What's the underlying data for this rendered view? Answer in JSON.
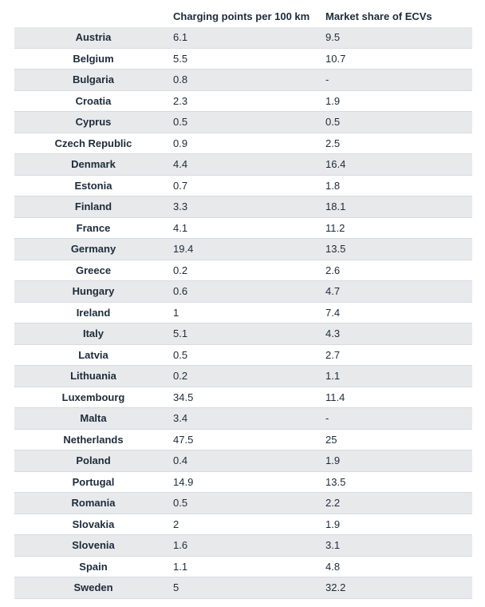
{
  "chart_data": {
    "type": "table",
    "columns": [
      "",
      "Charging points per 100 km",
      "Market share of ECVs"
    ],
    "rows": [
      {
        "country": "Austria",
        "charging_points_per_100km": "6.1",
        "market_share_ecvs": "9.5"
      },
      {
        "country": "Belgium",
        "charging_points_per_100km": "5.5",
        "market_share_ecvs": "10.7"
      },
      {
        "country": "Bulgaria",
        "charging_points_per_100km": "0.8",
        "market_share_ecvs": "-"
      },
      {
        "country": "Croatia",
        "charging_points_per_100km": "2.3",
        "market_share_ecvs": "1.9"
      },
      {
        "country": "Cyprus",
        "charging_points_per_100km": "0.5",
        "market_share_ecvs": "0.5"
      },
      {
        "country": "Czech Republic",
        "charging_points_per_100km": "0.9",
        "market_share_ecvs": "2.5"
      },
      {
        "country": "Denmark",
        "charging_points_per_100km": "4.4",
        "market_share_ecvs": "16.4"
      },
      {
        "country": "Estonia",
        "charging_points_per_100km": "0.7",
        "market_share_ecvs": "1.8"
      },
      {
        "country": "Finland",
        "charging_points_per_100km": "3.3",
        "market_share_ecvs": "18.1"
      },
      {
        "country": "France",
        "charging_points_per_100km": "4.1",
        "market_share_ecvs": "11.2"
      },
      {
        "country": "Germany",
        "charging_points_per_100km": "19.4",
        "market_share_ecvs": "13.5"
      },
      {
        "country": "Greece",
        "charging_points_per_100km": "0.2",
        "market_share_ecvs": "2.6"
      },
      {
        "country": "Hungary",
        "charging_points_per_100km": "0.6",
        "market_share_ecvs": "4.7"
      },
      {
        "country": "Ireland",
        "charging_points_per_100km": "1",
        "market_share_ecvs": "7.4"
      },
      {
        "country": "Italy",
        "charging_points_per_100km": "5.1",
        "market_share_ecvs": "4.3"
      },
      {
        "country": "Latvia",
        "charging_points_per_100km": "0.5",
        "market_share_ecvs": "2.7"
      },
      {
        "country": "Lithuania",
        "charging_points_per_100km": "0.2",
        "market_share_ecvs": "1.1"
      },
      {
        "country": "Luxembourg",
        "charging_points_per_100km": "34.5",
        "market_share_ecvs": "11.4"
      },
      {
        "country": "Malta",
        "charging_points_per_100km": "3.4",
        "market_share_ecvs": "-"
      },
      {
        "country": "Netherlands",
        "charging_points_per_100km": "47.5",
        "market_share_ecvs": "25"
      },
      {
        "country": "Poland",
        "charging_points_per_100km": "0.4",
        "market_share_ecvs": "1.9"
      },
      {
        "country": "Portugal",
        "charging_points_per_100km": "14.9",
        "market_share_ecvs": "13.5"
      },
      {
        "country": "Romania",
        "charging_points_per_100km": "0.5",
        "market_share_ecvs": "2.2"
      },
      {
        "country": "Slovakia",
        "charging_points_per_100km": "2",
        "market_share_ecvs": "1.9"
      },
      {
        "country": "Slovenia",
        "charging_points_per_100km": "1.6",
        "market_share_ecvs": "3.1"
      },
      {
        "country": "Spain",
        "charging_points_per_100km": "1.1",
        "market_share_ecvs": "4.8"
      },
      {
        "country": "Sweden",
        "charging_points_per_100km": "5",
        "market_share_ecvs": "32.2"
      }
    ],
    "row_band_color": "#e8e9eb",
    "text_color": "#1d2b3a",
    "grid": true
  }
}
